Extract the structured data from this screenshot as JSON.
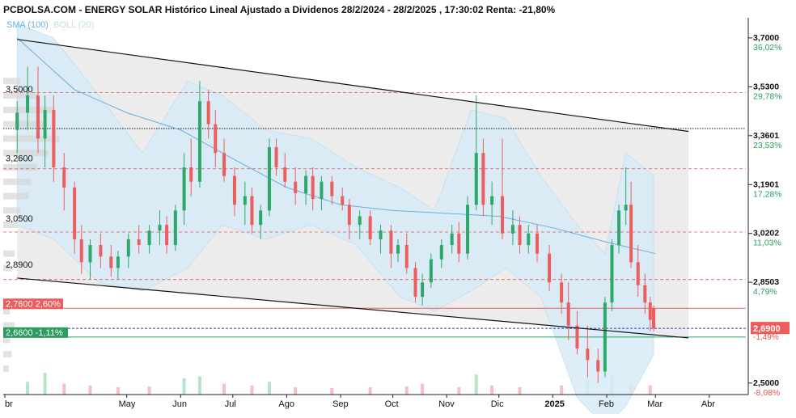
{
  "header": {
    "title": "PCBOLSA.COM - ENERGY SOLAR Histórico Lineal Ajustado a Dividenos 28/2/2024 - 28/2/2025 , 17:30:02 Renta: -21,80%"
  },
  "legend": {
    "sma_label": "SMA (100)",
    "boll_label": "BOLL (20)"
  },
  "colors": {
    "up": "#2ca86a",
    "down": "#ee5d5d",
    "sma": "#6aaee0",
    "bollinger_fill": "#d7ebf8",
    "channel_fill": "#ececec",
    "channel_line": "#111111",
    "level_dashed": "#e05555",
    "reference_red": "#ee5d5d",
    "reference_green": "#2b9e5e",
    "reference_blue": "#3040c0",
    "volume_profile": "#d5d5d5",
    "right_axis_pct_up": "#2b9e5e",
    "right_axis_pct_down": "#e05555"
  },
  "chart_data": {
    "type": "candlestick",
    "ylim": [
      2.46,
      3.77
    ],
    "x_axis_labels": [
      "br",
      "May",
      "Jun",
      "Jul",
      "Ago",
      "Sep",
      "Oct",
      "Nov",
      "Dic",
      "2025",
      "Feb",
      "Mar",
      "Abr"
    ],
    "left_axis_labels": [
      "3,5000",
      "3,2600",
      "3,0500",
      "2,8900"
    ],
    "right_axis": [
      {
        "price": "3,7000",
        "pct": "36,02%"
      },
      {
        "price": "3,5300",
        "pct": "29,78%"
      },
      {
        "price": "3,3601",
        "pct": "23,53%"
      },
      {
        "price": "3,1901",
        "pct": "17,28%"
      },
      {
        "price": "3,0202",
        "pct": "11,03%"
      },
      {
        "price": "2,8503",
        "pct": "4,79%"
      },
      {
        "price": "2,5000",
        "pct": "-8,08%"
      }
    ],
    "reference_lines": [
      {
        "label": "2,7600  2,60%",
        "value": 2.76,
        "kind": "red"
      },
      {
        "label": "2,6600  -1,11%",
        "value": 2.66,
        "kind": "green"
      }
    ],
    "last_price": {
      "label": "2,6900",
      "pct": "-1,49%",
      "value": 2.69
    },
    "dotted_level": 3.385,
    "dashed_levels": [
      3.51,
      3.245,
      3.025,
      2.86
    ],
    "channel": {
      "upper_start": {
        "date": "2024-02-28",
        "value": 3.695
      },
      "upper_end": {
        "date": "2025-03-20",
        "value": 3.375
      },
      "lower_start": {
        "date": "2024-02-28",
        "value": 2.865
      },
      "lower_end": {
        "date": "2025-03-20",
        "value": 2.657
      }
    },
    "series": [
      {
        "date": "2024-02-28",
        "open": 3.38,
        "high": 3.48,
        "low": 3.3,
        "close": 3.44
      },
      {
        "date": "2024-03-05",
        "open": 3.44,
        "high": 3.6,
        "low": 3.38,
        "close": 3.5
      },
      {
        "date": "2024-03-11",
        "open": 3.5,
        "high": 3.6,
        "low": 3.3,
        "close": 3.35
      },
      {
        "date": "2024-03-15",
        "open": 3.35,
        "high": 3.5,
        "low": 3.25,
        "close": 3.45
      },
      {
        "date": "2024-03-20",
        "open": 3.45,
        "high": 3.5,
        "low": 3.2,
        "close": 3.25
      },
      {
        "date": "2024-03-26",
        "open": 3.25,
        "high": 3.3,
        "low": 3.1,
        "close": 3.18
      },
      {
        "date": "2024-04-01",
        "open": 3.18,
        "high": 3.2,
        "low": 2.95,
        "close": 3.0
      },
      {
        "date": "2024-04-05",
        "open": 3.0,
        "high": 3.05,
        "low": 2.88,
        "close": 2.92
      },
      {
        "date": "2024-04-10",
        "open": 2.92,
        "high": 3.0,
        "low": 2.86,
        "close": 2.98
      },
      {
        "date": "2024-04-16",
        "open": 2.98,
        "high": 3.02,
        "low": 2.9,
        "close": 2.94
      },
      {
        "date": "2024-04-22",
        "open": 2.94,
        "high": 2.98,
        "low": 2.87,
        "close": 2.9
      },
      {
        "date": "2024-04-26",
        "open": 2.9,
        "high": 2.96,
        "low": 2.86,
        "close": 2.94
      },
      {
        "date": "2024-05-02",
        "open": 2.94,
        "high": 3.02,
        "low": 2.9,
        "close": 3.0
      },
      {
        "date": "2024-05-08",
        "open": 3.0,
        "high": 3.05,
        "low": 2.95,
        "close": 2.98
      },
      {
        "date": "2024-05-14",
        "open": 2.98,
        "high": 3.05,
        "low": 2.95,
        "close": 3.03
      },
      {
        "date": "2024-05-20",
        "open": 3.03,
        "high": 3.1,
        "low": 2.98,
        "close": 3.05
      },
      {
        "date": "2024-05-24",
        "open": 3.05,
        "high": 3.08,
        "low": 2.95,
        "close": 2.98
      },
      {
        "date": "2024-05-29",
        "open": 2.98,
        "high": 3.12,
        "low": 2.96,
        "close": 3.1
      },
      {
        "date": "2024-06-03",
        "open": 3.1,
        "high": 3.3,
        "low": 3.05,
        "close": 3.25
      },
      {
        "date": "2024-06-07",
        "open": 3.25,
        "high": 3.35,
        "low": 3.15,
        "close": 3.2
      },
      {
        "date": "2024-06-12",
        "open": 3.2,
        "high": 3.55,
        "low": 3.18,
        "close": 3.48
      },
      {
        "date": "2024-06-17",
        "open": 3.48,
        "high": 3.52,
        "low": 3.35,
        "close": 3.4
      },
      {
        "date": "2024-06-21",
        "open": 3.4,
        "high": 3.45,
        "low": 3.25,
        "close": 3.3
      },
      {
        "date": "2024-06-26",
        "open": 3.3,
        "high": 3.35,
        "low": 3.2,
        "close": 3.22
      },
      {
        "date": "2024-07-02",
        "open": 3.22,
        "high": 3.25,
        "low": 3.08,
        "close": 3.12
      },
      {
        "date": "2024-07-08",
        "open": 3.12,
        "high": 3.2,
        "low": 3.05,
        "close": 3.15
      },
      {
        "date": "2024-07-12",
        "open": 3.15,
        "high": 3.18,
        "low": 3.02,
        "close": 3.05
      },
      {
        "date": "2024-07-17",
        "open": 3.05,
        "high": 3.12,
        "low": 3.0,
        "close": 3.1
      },
      {
        "date": "2024-07-22",
        "open": 3.1,
        "high": 3.35,
        "low": 3.08,
        "close": 3.32
      },
      {
        "date": "2024-07-26",
        "open": 3.32,
        "high": 3.35,
        "low": 3.22,
        "close": 3.25
      },
      {
        "date": "2024-07-31",
        "open": 3.25,
        "high": 3.3,
        "low": 3.18,
        "close": 3.2
      },
      {
        "date": "2024-08-06",
        "open": 3.2,
        "high": 3.25,
        "low": 3.12,
        "close": 3.16
      },
      {
        "date": "2024-08-12",
        "open": 3.16,
        "high": 3.24,
        "low": 3.12,
        "close": 3.22
      },
      {
        "date": "2024-08-16",
        "open": 3.22,
        "high": 3.25,
        "low": 3.1,
        "close": 3.14
      },
      {
        "date": "2024-08-21",
        "open": 3.14,
        "high": 3.22,
        "low": 3.1,
        "close": 3.2
      },
      {
        "date": "2024-08-27",
        "open": 3.2,
        "high": 3.22,
        "low": 3.12,
        "close": 3.15
      },
      {
        "date": "2024-09-02",
        "open": 3.15,
        "high": 3.18,
        "low": 3.1,
        "close": 3.12
      },
      {
        "date": "2024-09-06",
        "open": 3.12,
        "high": 3.14,
        "low": 3.0,
        "close": 3.05
      },
      {
        "date": "2024-09-12",
        "open": 3.05,
        "high": 3.1,
        "low": 3.0,
        "close": 3.08
      },
      {
        "date": "2024-09-18",
        "open": 3.08,
        "high": 3.1,
        "low": 2.98,
        "close": 3.0
      },
      {
        "date": "2024-09-24",
        "open": 3.0,
        "high": 3.05,
        "low": 2.95,
        "close": 3.03
      },
      {
        "date": "2024-09-30",
        "open": 3.03,
        "high": 3.05,
        "low": 2.9,
        "close": 2.95
      },
      {
        "date": "2024-10-04",
        "open": 2.95,
        "high": 3.0,
        "low": 2.92,
        "close": 2.98
      },
      {
        "date": "2024-10-09",
        "open": 2.98,
        "high": 3.02,
        "low": 2.88,
        "close": 2.9
      },
      {
        "date": "2024-10-14",
        "open": 2.9,
        "high": 2.92,
        "low": 2.78,
        "close": 2.8
      },
      {
        "date": "2024-10-18",
        "open": 2.8,
        "high": 2.88,
        "low": 2.77,
        "close": 2.85
      },
      {
        "date": "2024-10-23",
        "open": 2.85,
        "high": 2.95,
        "low": 2.83,
        "close": 2.93
      },
      {
        "date": "2024-10-29",
        "open": 2.93,
        "high": 3.0,
        "low": 2.9,
        "close": 2.98
      },
      {
        "date": "2024-11-04",
        "open": 2.98,
        "high": 3.05,
        "low": 2.95,
        "close": 3.02
      },
      {
        "date": "2024-11-08",
        "open": 3.02,
        "high": 3.06,
        "low": 2.92,
        "close": 2.95
      },
      {
        "date": "2024-11-13",
        "open": 2.95,
        "high": 3.15,
        "low": 2.93,
        "close": 3.12
      },
      {
        "date": "2024-11-18",
        "open": 3.12,
        "high": 3.5,
        "low": 3.1,
        "close": 3.3
      },
      {
        "date": "2024-11-22",
        "open": 3.3,
        "high": 3.35,
        "low": 3.08,
        "close": 3.12
      },
      {
        "date": "2024-11-27",
        "open": 3.12,
        "high": 3.2,
        "low": 3.05,
        "close": 3.15
      },
      {
        "date": "2024-12-03",
        "open": 3.15,
        "high": 3.35,
        "low": 3.0,
        "close": 3.02
      },
      {
        "date": "2024-12-09",
        "open": 3.02,
        "high": 3.1,
        "low": 2.98,
        "close": 3.05
      },
      {
        "date": "2024-12-13",
        "open": 3.05,
        "high": 3.08,
        "low": 2.95,
        "close": 2.98
      },
      {
        "date": "2024-12-18",
        "open": 2.98,
        "high": 3.05,
        "low": 2.95,
        "close": 3.02
      },
      {
        "date": "2024-12-23",
        "open": 3.02,
        "high": 3.05,
        "low": 2.92,
        "close": 2.95
      },
      {
        "date": "2024-12-30",
        "open": 2.95,
        "high": 2.98,
        "low": 2.82,
        "close": 2.85
      },
      {
        "date": "2025-01-06",
        "open": 2.85,
        "high": 2.88,
        "low": 2.74,
        "close": 2.78
      },
      {
        "date": "2025-01-10",
        "open": 2.78,
        "high": 2.85,
        "low": 2.65,
        "close": 2.7
      },
      {
        "date": "2025-01-15",
        "open": 2.7,
        "high": 2.75,
        "low": 2.6,
        "close": 2.62
      },
      {
        "date": "2025-01-21",
        "open": 2.62,
        "high": 2.7,
        "low": 2.52,
        "close": 2.58
      },
      {
        "date": "2025-01-27",
        "open": 2.58,
        "high": 2.62,
        "low": 2.5,
        "close": 2.54
      },
      {
        "date": "2025-01-31",
        "open": 2.54,
        "high": 2.8,
        "low": 2.52,
        "close": 2.78
      },
      {
        "date": "2025-02-04",
        "open": 2.78,
        "high": 3.0,
        "low": 2.75,
        "close": 2.98
      },
      {
        "date": "2025-02-08",
        "open": 2.98,
        "high": 3.12,
        "low": 2.95,
        "close": 3.1
      },
      {
        "date": "2025-02-12",
        "open": 3.1,
        "high": 3.25,
        "low": 3.05,
        "close": 3.12
      },
      {
        "date": "2025-02-15",
        "open": 3.12,
        "high": 3.2,
        "low": 2.9,
        "close": 2.92
      },
      {
        "date": "2025-02-19",
        "open": 2.92,
        "high": 2.98,
        "low": 2.8,
        "close": 2.84
      },
      {
        "date": "2025-02-23",
        "open": 2.84,
        "high": 2.88,
        "low": 2.74,
        "close": 2.78
      },
      {
        "date": "2025-02-26",
        "open": 2.78,
        "high": 2.8,
        "low": 2.68,
        "close": 2.72
      },
      {
        "date": "2025-02-28",
        "open": 2.76,
        "high": 2.77,
        "low": 2.68,
        "close": 2.69
      }
    ],
    "sma": [
      {
        "date": "2024-02-28",
        "value": 3.7
      },
      {
        "date": "2024-04-01",
        "value": 3.52
      },
      {
        "date": "2024-05-01",
        "value": 3.44
      },
      {
        "date": "2024-06-01",
        "value": 3.38
      },
      {
        "date": "2024-07-01",
        "value": 3.28
      },
      {
        "date": "2024-08-01",
        "value": 3.18
      },
      {
        "date": "2024-09-01",
        "value": 3.12
      },
      {
        "date": "2024-10-01",
        "value": 3.1
      },
      {
        "date": "2024-11-01",
        "value": 3.09
      },
      {
        "date": "2024-12-01",
        "value": 3.08
      },
      {
        "date": "2025-01-01",
        "value": 3.04
      },
      {
        "date": "2025-02-01",
        "value": 2.99
      },
      {
        "date": "2025-03-01",
        "value": 2.95
      }
    ],
    "bollinger": [
      {
        "date": "2024-02-28",
        "upper": 3.75,
        "lower": 3.05
      },
      {
        "date": "2024-03-20",
        "upper": 3.7,
        "lower": 3.0
      },
      {
        "date": "2024-04-15",
        "upper": 3.5,
        "lower": 2.85
      },
      {
        "date": "2024-05-10",
        "upper": 3.3,
        "lower": 2.82
      },
      {
        "date": "2024-06-05",
        "upper": 3.55,
        "lower": 2.9
      },
      {
        "date": "2024-06-25",
        "upper": 3.5,
        "lower": 3.05
      },
      {
        "date": "2024-07-20",
        "upper": 3.38,
        "lower": 3.0
      },
      {
        "date": "2024-08-15",
        "upper": 3.35,
        "lower": 3.05
      },
      {
        "date": "2024-09-10",
        "upper": 3.25,
        "lower": 2.98
      },
      {
        "date": "2024-10-05",
        "upper": 3.18,
        "lower": 2.8
      },
      {
        "date": "2024-10-25",
        "upper": 3.1,
        "lower": 2.75
      },
      {
        "date": "2024-11-15",
        "upper": 3.45,
        "lower": 2.82
      },
      {
        "date": "2024-12-05",
        "upper": 3.42,
        "lower": 2.9
      },
      {
        "date": "2024-12-25",
        "upper": 3.22,
        "lower": 2.8
      },
      {
        "date": "2025-01-15",
        "upper": 3.05,
        "lower": 2.45
      },
      {
        "date": "2025-01-31",
        "upper": 2.95,
        "lower": 2.35
      },
      {
        "date": "2025-02-12",
        "upper": 3.3,
        "lower": 2.42
      },
      {
        "date": "2025-02-28",
        "upper": 3.22,
        "lower": 2.6
      }
    ],
    "volume": [
      {
        "date": "2024-03-05",
        "value": 0.35
      },
      {
        "date": "2024-03-15",
        "value": 0.6
      },
      {
        "date": "2024-03-26",
        "value": 0.3
      },
      {
        "date": "2024-04-10",
        "value": 0.25
      },
      {
        "date": "2024-04-26",
        "value": 0.2
      },
      {
        "date": "2024-05-14",
        "value": 0.22
      },
      {
        "date": "2024-06-03",
        "value": 0.45
      },
      {
        "date": "2024-06-12",
        "value": 0.5
      },
      {
        "date": "2024-06-26",
        "value": 0.3
      },
      {
        "date": "2024-07-12",
        "value": 0.25
      },
      {
        "date": "2024-07-22",
        "value": 0.35
      },
      {
        "date": "2024-08-06",
        "value": 0.2
      },
      {
        "date": "2024-08-27",
        "value": 0.18
      },
      {
        "date": "2024-09-18",
        "value": 0.2
      },
      {
        "date": "2024-10-09",
        "value": 0.22
      },
      {
        "date": "2024-10-18",
        "value": 0.3
      },
      {
        "date": "2024-11-08",
        "value": 0.2
      },
      {
        "date": "2024-11-18",
        "value": 0.55
      },
      {
        "date": "2024-11-27",
        "value": 0.25
      },
      {
        "date": "2024-12-13",
        "value": 0.2
      },
      {
        "date": "2025-01-06",
        "value": 0.25
      },
      {
        "date": "2025-01-21",
        "value": 0.4
      },
      {
        "date": "2025-02-04",
        "value": 0.55
      },
      {
        "date": "2025-02-15",
        "value": 0.3
      },
      {
        "date": "2025-02-26",
        "value": 0.25
      }
    ],
    "volume_profile": [
      {
        "price": 3.55,
        "value": 0.3
      },
      {
        "price": 3.5,
        "value": 0.6
      },
      {
        "price": 3.45,
        "value": 0.9
      },
      {
        "price": 3.4,
        "value": 0.7
      },
      {
        "price": 3.35,
        "value": 1.0
      },
      {
        "price": 3.3,
        "value": 0.8
      },
      {
        "price": 3.25,
        "value": 0.6
      },
      {
        "price": 3.2,
        "value": 0.5
      },
      {
        "price": 3.15,
        "value": 0.45
      },
      {
        "price": 3.1,
        "value": 0.3
      },
      {
        "price": 3.05,
        "value": 0.25
      },
      {
        "price": 2.95,
        "value": 0.2
      },
      {
        "price": 2.9,
        "value": 0.15
      },
      {
        "price": 2.75,
        "value": 0.12
      },
      {
        "price": 2.7,
        "value": 0.2
      },
      {
        "price": 2.65,
        "value": 0.12
      },
      {
        "price": 2.6,
        "value": 0.15
      },
      {
        "price": 2.55,
        "value": 0.1
      }
    ]
  }
}
